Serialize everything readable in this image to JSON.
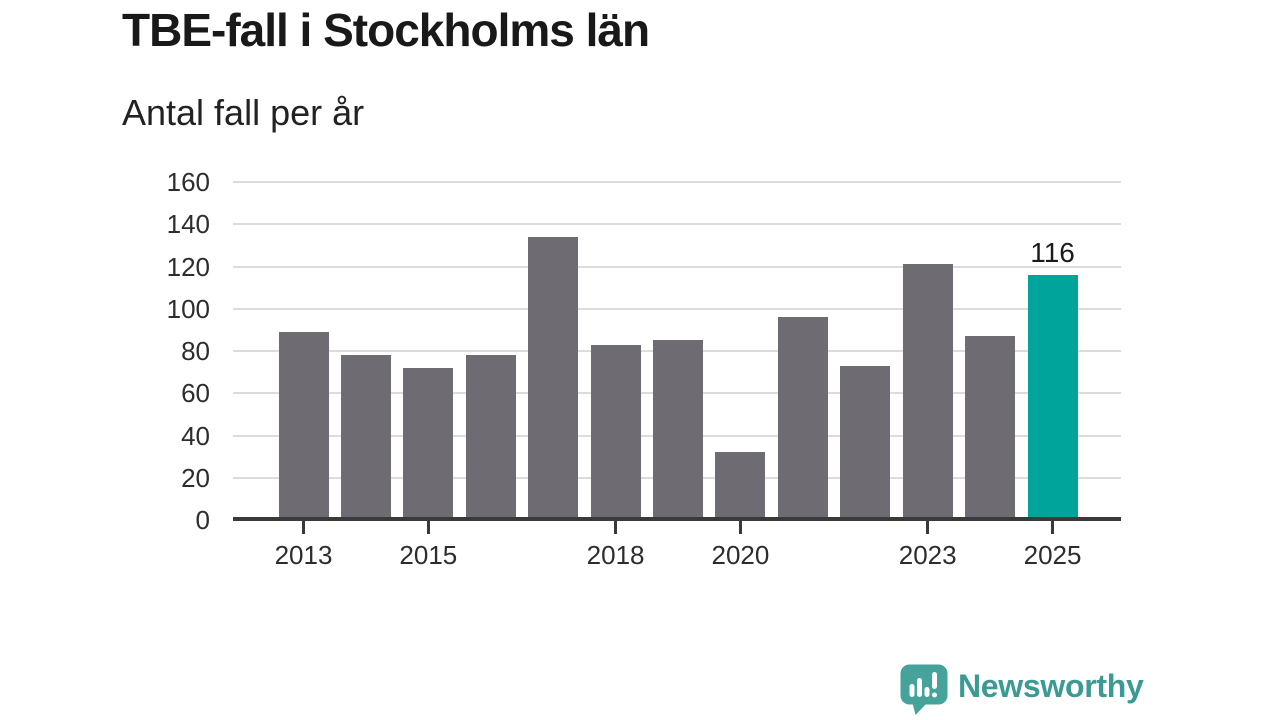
{
  "header": {
    "title": "TBE-fall i Stockholms län",
    "subtitle": "Antal fall per år"
  },
  "chart_data": {
    "type": "bar",
    "title": "TBE-fall i Stockholms län",
    "subtitle": "Antal fall per år",
    "xlabel": "",
    "ylabel": "Antal fall per år",
    "categories": [
      2013,
      2014,
      2015,
      2016,
      2017,
      2018,
      2019,
      2020,
      2021,
      2022,
      2023,
      2024,
      2025
    ],
    "values": [
      89,
      78,
      72,
      78,
      134,
      83,
      85,
      32,
      96,
      73,
      121,
      87,
      116
    ],
    "highlight_index": 12,
    "highlight_value_label": "116",
    "ylim": [
      0,
      160
    ],
    "yticks": [
      0,
      20,
      40,
      60,
      80,
      100,
      120,
      140,
      160
    ],
    "xticks": [
      2013,
      2015,
      2018,
      2020,
      2023,
      2025
    ],
    "grid": true,
    "legend": "none",
    "colors": {
      "bar": "#6e6c72",
      "highlight": "#00a49a",
      "logo_text": "#3b9a93",
      "logo_icon": "#46a39b",
      "gridline": "#dcdcdc",
      "axis": "#3a3a3a"
    }
  },
  "branding": {
    "logo_text": "Newsworthy",
    "logo_icon": "bar-chart-speech-bubble-icon"
  }
}
